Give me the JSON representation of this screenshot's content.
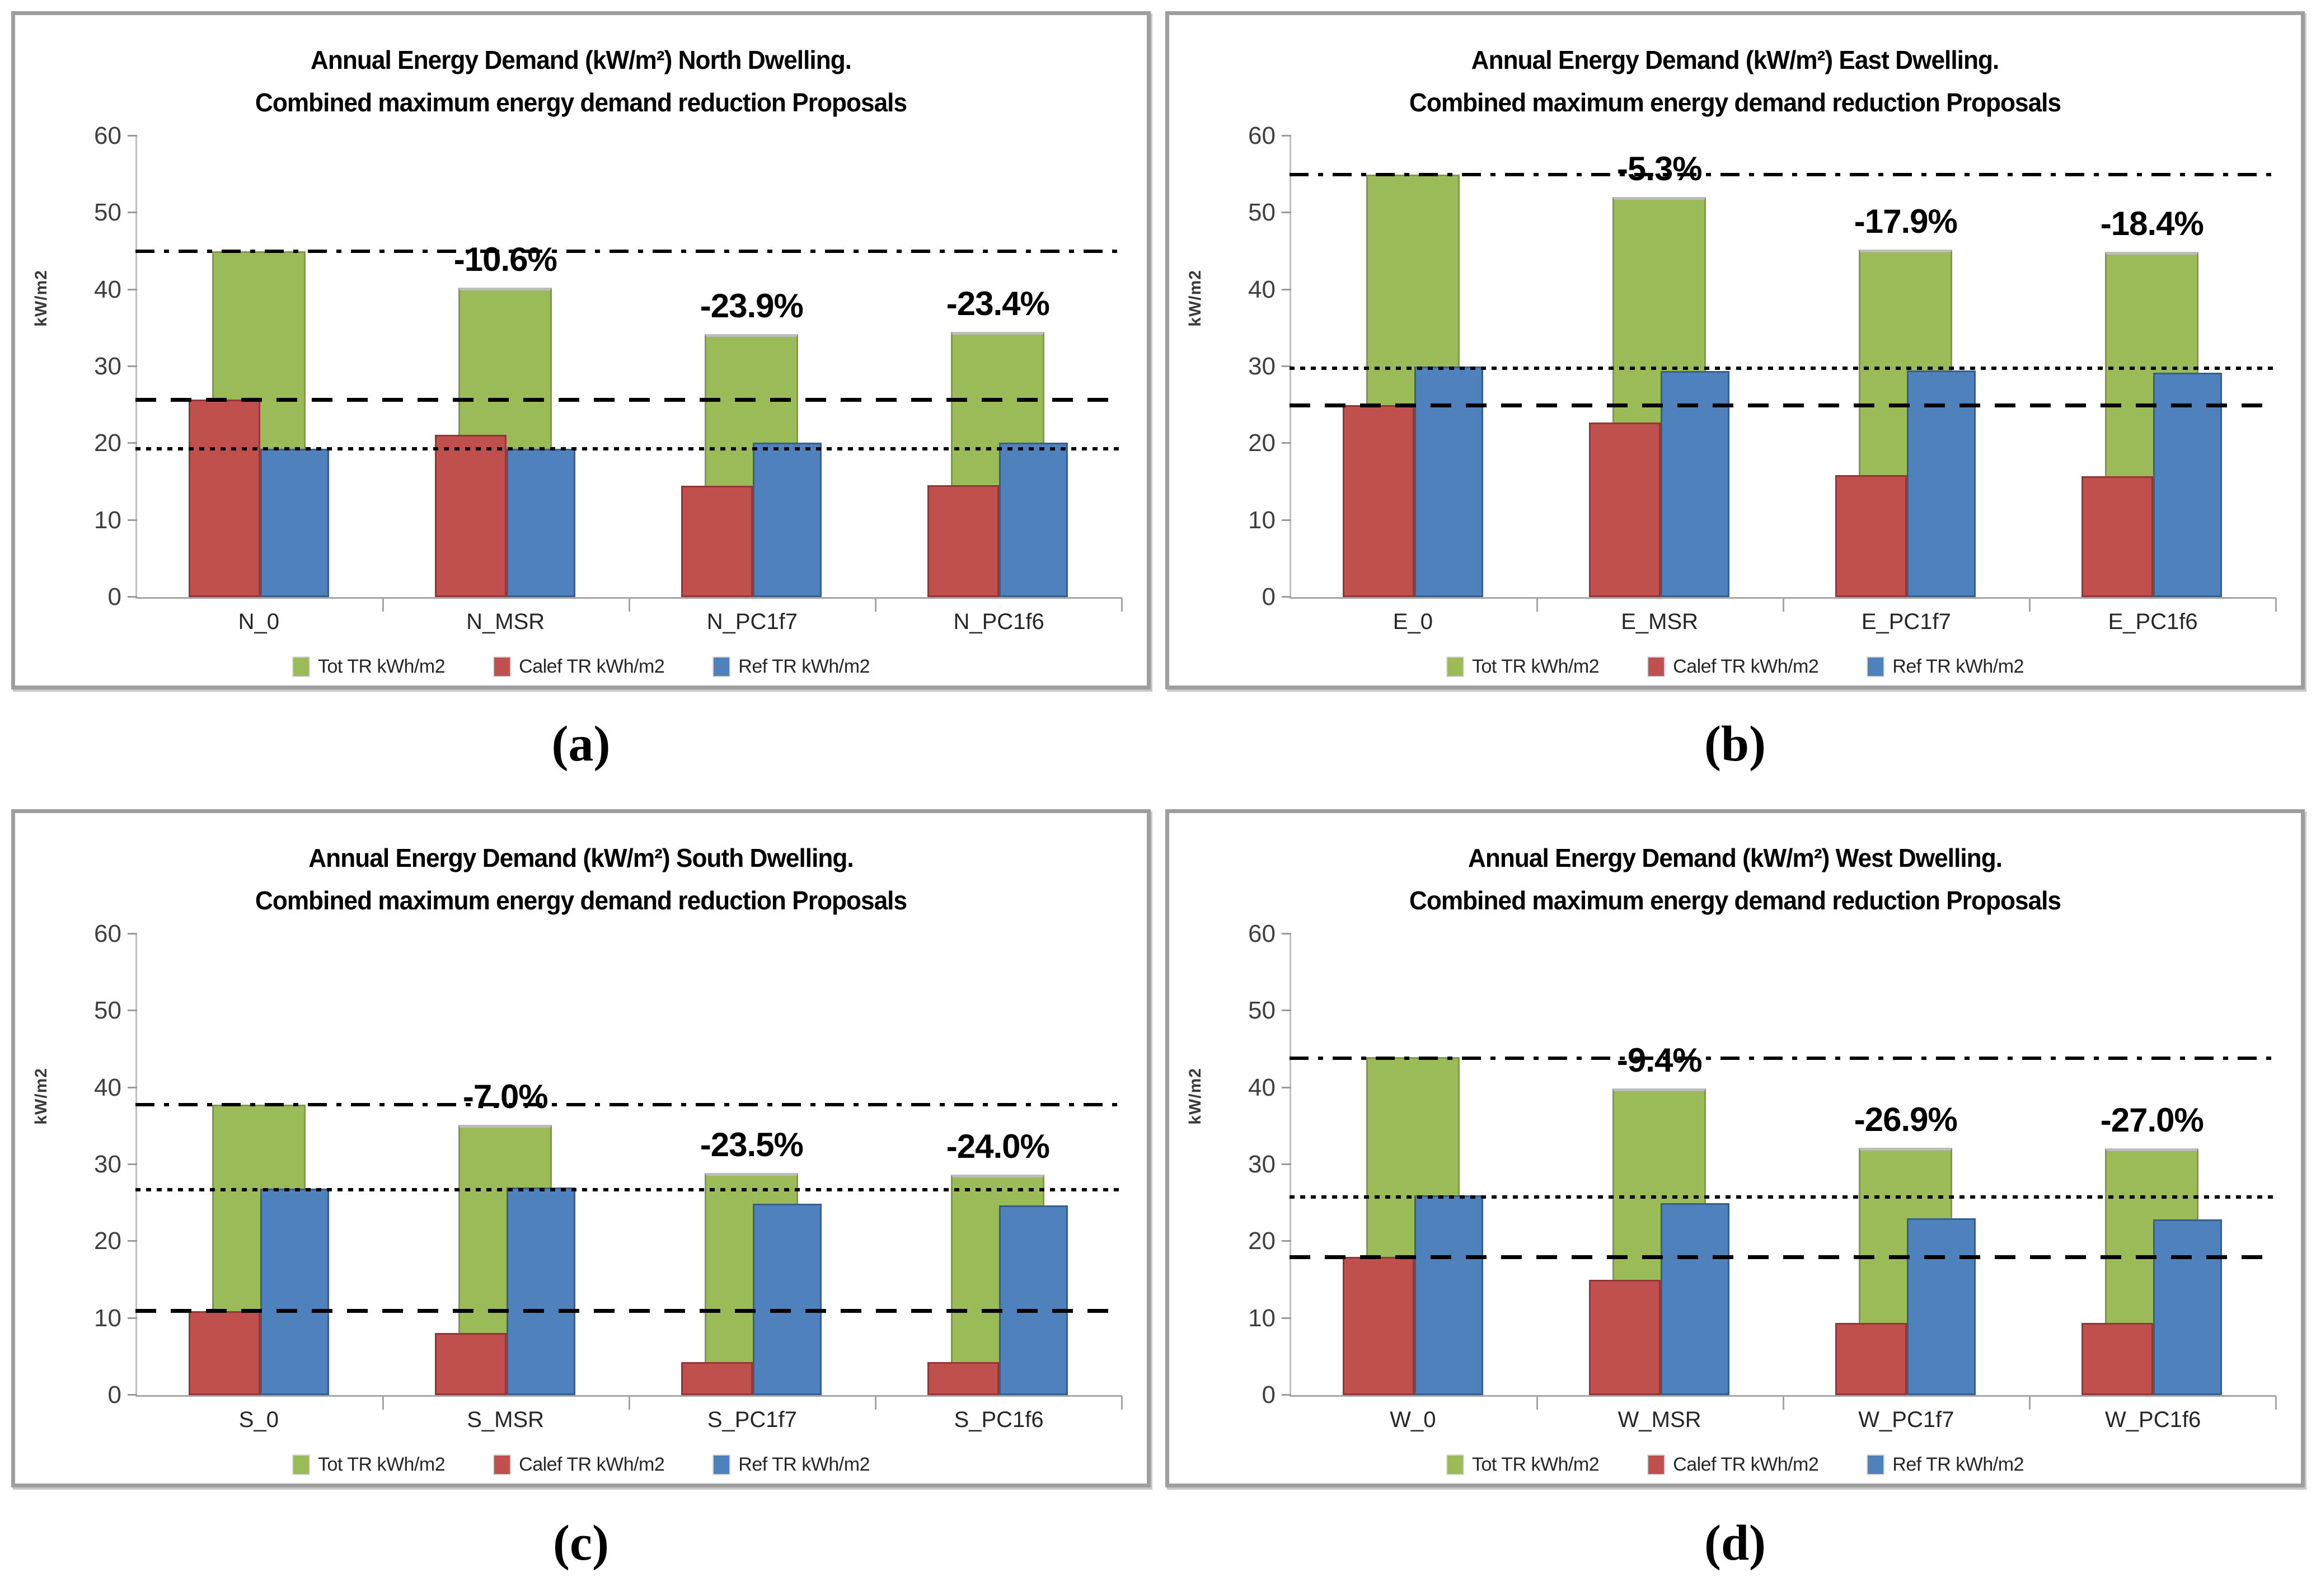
{
  "page": {
    "background": "#ffffff"
  },
  "colors": {
    "tot": "#9BBB59",
    "tot_border": "#7E9A46",
    "tot_cap": "#BDBDBD",
    "calef": "#C0504D",
    "calef_border": "#943634",
    "ref": "#4F81BD",
    "ref_border": "#35608D",
    "axis_line": "#A6A6A6",
    "tick_text": "#3F3F3F",
    "panel_border": "#9E9E9E",
    "ref_line": "#000000"
  },
  "chart_data": [
    {
      "id": "a",
      "type": "bar",
      "caption": "(a)",
      "title": "Annual Energy Demand (kW/m²) North Dwelling.",
      "subtitle": "Combined maximum energy demand reduction Proposals",
      "ylabel": "kW/m2",
      "xlabel": "",
      "ylim": [
        0,
        60
      ],
      "ytick_step": 10,
      "grid": false,
      "legend_position": "bottom",
      "categories": [
        "N_0",
        "N_MSR",
        "N_PC1f7",
        "N_PC1f6"
      ],
      "series": [
        {
          "name": "Tot TR kWh/m2",
          "key": "tot",
          "values": [
            45.0,
            40.3,
            34.2,
            34.5
          ]
        },
        {
          "name": "Calef TR kWh/m2",
          "key": "calef",
          "values": [
            25.7,
            21.1,
            14.5,
            14.6
          ]
        },
        {
          "name": "Ref TR kWh/m2",
          "key": "ref",
          "values": [
            19.3,
            19.3,
            20.1,
            20.1
          ]
        }
      ],
      "annotations": [
        "",
        "-10.6%",
        "-23.9%",
        "-23.4%"
      ],
      "ref_lines": [
        {
          "value": 45.0,
          "style": "dashdot"
        },
        {
          "value": 25.6,
          "style": "dashed"
        },
        {
          "value": 19.3,
          "style": "dotted"
        }
      ]
    },
    {
      "id": "b",
      "type": "bar",
      "caption": "(b)",
      "title": "Annual Energy Demand (kW/m²) East Dwelling.",
      "subtitle": "Combined maximum energy demand reduction Proposals",
      "ylabel": "kW/m2",
      "xlabel": "",
      "ylim": [
        0,
        60
      ],
      "ytick_step": 10,
      "grid": false,
      "legend_position": "bottom",
      "categories": [
        "E_0",
        "E_MSR",
        "E_PC1f7",
        "E_PC1f6"
      ],
      "series": [
        {
          "name": "Tot TR kWh/m2",
          "key": "tot",
          "values": [
            55.0,
            52.1,
            45.2,
            44.9
          ]
        },
        {
          "name": "Calef TR kWh/m2",
          "key": "calef",
          "values": [
            25.0,
            22.7,
            15.9,
            15.7
          ]
        },
        {
          "name": "Ref TR kWh/m2",
          "key": "ref",
          "values": [
            30.0,
            29.4,
            29.5,
            29.2
          ]
        }
      ],
      "annotations": [
        "",
        "-5.3%",
        "-17.9%",
        "-18.4%"
      ],
      "ref_lines": [
        {
          "value": 55.0,
          "style": "dashdot"
        },
        {
          "value": 29.8,
          "style": "dotted"
        },
        {
          "value": 24.9,
          "style": "dashed"
        }
      ]
    },
    {
      "id": "c",
      "type": "bar",
      "caption": "(c)",
      "title": "Annual Energy Demand (kW/m²) South Dwelling.",
      "subtitle": "Combined maximum energy demand reduction Proposals",
      "ylabel": "kW/m2",
      "xlabel": "",
      "ylim": [
        0,
        60
      ],
      "ytick_step": 10,
      "grid": false,
      "legend_position": "bottom",
      "categories": [
        "S_0",
        "S_MSR",
        "S_PC1f7",
        "S_PC1f6"
      ],
      "series": [
        {
          "name": "Tot TR kWh/m2",
          "key": "tot",
          "values": [
            37.8,
            35.2,
            28.9,
            28.7
          ]
        },
        {
          "name": "Calef TR kWh/m2",
          "key": "calef",
          "values": [
            10.9,
            8.1,
            4.3,
            4.3
          ]
        },
        {
          "name": "Ref TR kWh/m2",
          "key": "ref",
          "values": [
            26.9,
            27.0,
            24.9,
            24.7
          ]
        }
      ],
      "annotations": [
        "",
        "-7.0%",
        "-23.5%",
        "-24.0%"
      ],
      "ref_lines": [
        {
          "value": 37.8,
          "style": "dashdot"
        },
        {
          "value": 26.7,
          "style": "dotted"
        },
        {
          "value": 10.9,
          "style": "dashed"
        }
      ]
    },
    {
      "id": "d",
      "type": "bar",
      "caption": "(d)",
      "title": "Annual Energy Demand (kW/m²) West Dwelling.",
      "subtitle": "Combined maximum energy demand reduction Proposals",
      "ylabel": "kW/m2",
      "xlabel": "",
      "ylim": [
        0,
        60
      ],
      "ytick_step": 10,
      "grid": false,
      "legend_position": "bottom",
      "categories": [
        "W_0",
        "W_MSR",
        "W_PC1f7",
        "W_PC1f6"
      ],
      "series": [
        {
          "name": "Tot TR kWh/m2",
          "key": "tot",
          "values": [
            44.0,
            39.9,
            32.2,
            32.1
          ]
        },
        {
          "name": "Calef TR kWh/m2",
          "key": "calef",
          "values": [
            18.0,
            15.0,
            9.4,
            9.4
          ]
        },
        {
          "name": "Ref TR kWh/m2",
          "key": "ref",
          "values": [
            26.0,
            25.0,
            23.0,
            22.9
          ]
        }
      ],
      "annotations": [
        "",
        "-9.4%",
        "-26.9%",
        "-27.0%"
      ],
      "ref_lines": [
        {
          "value": 43.8,
          "style": "dashdot"
        },
        {
          "value": 25.8,
          "style": "dotted"
        },
        {
          "value": 17.9,
          "style": "dashed"
        }
      ]
    }
  ]
}
